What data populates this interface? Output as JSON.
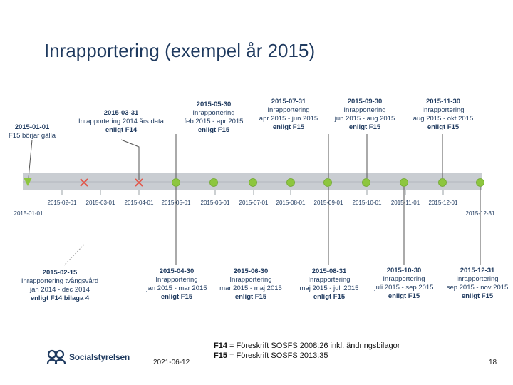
{
  "slide": {
    "title": "Inrapportering (exempel år 2015)",
    "date": "2021-06-12",
    "page_number": "18",
    "footnote_f14_label": "F14",
    "footnote_f14_text": " = Föreskrift SOSFS 2008:26 inkl. ändringsbilagor",
    "footnote_f15_label": "F15",
    "footnote_f15_text": " = Föreskrift SOSFS 2013:35",
    "logo_text": "Socialstyrelsen"
  },
  "timeline": {
    "tick_labels": [
      "2015-02-01",
      "2015-03-01",
      "2015-04-01",
      "2015-05-01",
      "2015-06-01",
      "2015-07-01",
      "2015-08-01",
      "2015-09-01",
      "2015-10-01",
      "2015-11-01",
      "2015-12-01"
    ],
    "start_label": "2015-01-01",
    "end_label": "2015-12-31",
    "colors": {
      "green": "#8dc63f",
      "red_x": "#e05a4e",
      "bar": "#c9cdd2",
      "text": "#1f3a5f"
    },
    "above": [
      {
        "id": "start",
        "lines": [
          "2015-01-01",
          "F15 börjar gälla"
        ]
      },
      {
        "id": "mar31",
        "lines": [
          "2015-03-31",
          "Inrapportering 2014 års data",
          "enligt F14"
        ]
      },
      {
        "id": "may30",
        "lines": [
          "2015-05-30",
          "Inrapportering",
          "feb 2015 - apr 2015",
          "enligt F15"
        ]
      },
      {
        "id": "jul31",
        "lines": [
          "2015-07-31",
          "Inrapportering",
          "apr 2015 - jun 2015",
          "enligt F15"
        ]
      },
      {
        "id": "sep30",
        "lines": [
          "2015-09-30",
          "Inrapportering",
          "jun 2015 - aug 2015",
          "enligt F15"
        ]
      },
      {
        "id": "nov30",
        "lines": [
          "2015-11-30",
          "Inrapportering",
          "aug 2015 - okt 2015",
          "enligt F15"
        ]
      }
    ],
    "below": [
      {
        "id": "feb15",
        "lines": [
          "2015-02-15",
          "Inrapportering tvångsvård",
          "jan 2014 - dec 2014",
          "enligt F14 bilaga 4"
        ]
      },
      {
        "id": "apr30",
        "lines": [
          "2015-04-30",
          "Inrapportering",
          "jan 2015 - mar 2015",
          "enligt F15"
        ]
      },
      {
        "id": "jun30",
        "lines": [
          "2015-06-30",
          "Inrapportering",
          "mar 2015 - maj 2015",
          "enligt F15"
        ]
      },
      {
        "id": "aug31",
        "lines": [
          "2015-08-31",
          "Inrapportering",
          "maj 2015 - juli 2015",
          "enligt F15"
        ]
      },
      {
        "id": "oct30",
        "lines": [
          "2015-10-30",
          "Inrapportering",
          "juli 2015 - sep 2015",
          "enligt F15"
        ]
      },
      {
        "id": "dec31",
        "lines": [
          "2015-12-31",
          "Inrapportering",
          "sep 2015 - nov 2015",
          "enligt F15"
        ]
      }
    ]
  }
}
